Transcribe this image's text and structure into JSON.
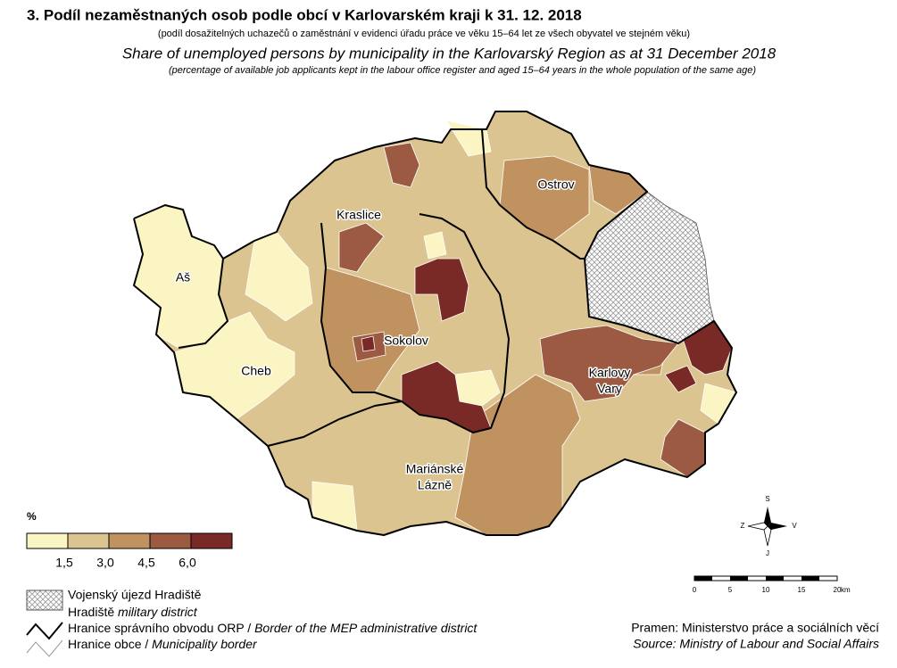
{
  "header": {
    "title": "3. Podíl nezaměstnaných osob podle obcí v Karlovarském kraji k 31. 12. 2018",
    "subtitle_cz": "(podíl dosažitelných uchazečů o zaměstnání v evidenci úřadu práce ve věku 15–64 let ze všech obyvatel ve stejném věku)",
    "title_en": "Share of unemployed persons by municipality in the Karlovarský Region as at 31 December 2018",
    "subtitle_en": "(percentage of available job applicants kept in the labour office register and aged 15–64 years in the whole population of the same age)"
  },
  "places": {
    "as": "Aš",
    "cheb": "Cheb",
    "kraslice": "Kraslice",
    "sokolov": "Sokolov",
    "ostrov": "Ostrov",
    "karlovy_vary": [
      "Karlovy",
      "Vary"
    ],
    "marianske_lazne": [
      "Mariánské",
      "Lázně"
    ]
  },
  "legend": {
    "unit": "%",
    "colors": [
      "#fbf4c3",
      "#dcc491",
      "#c09260",
      "#9b5a41",
      "#7a2a26"
    ],
    "breaks": [
      "1,5",
      "3,0",
      "4,5",
      "6,0"
    ]
  },
  "compass": {
    "north": "S",
    "west": "Z",
    "east": "V",
    "south": "J"
  },
  "scale": {
    "labels": [
      "0",
      "5",
      "10",
      "15",
      "20"
    ],
    "unit": "km"
  },
  "key": {
    "military_cz": "Vojenský újezd Hradiště",
    "military_en_prefix": "Hradiště",
    "military_en": "military district",
    "orp_cz": "Hranice správního obvodu ORP /",
    "orp_en": "Border of the MEP administrative district",
    "municipality_cz": "Hranice obce /",
    "municipality_en": "Municipality border"
  },
  "source": {
    "cz": "Pramen: Ministerstvo práce a sociálních věcí",
    "en": "Source: Ministry of Labour and Social Affairs"
  }
}
